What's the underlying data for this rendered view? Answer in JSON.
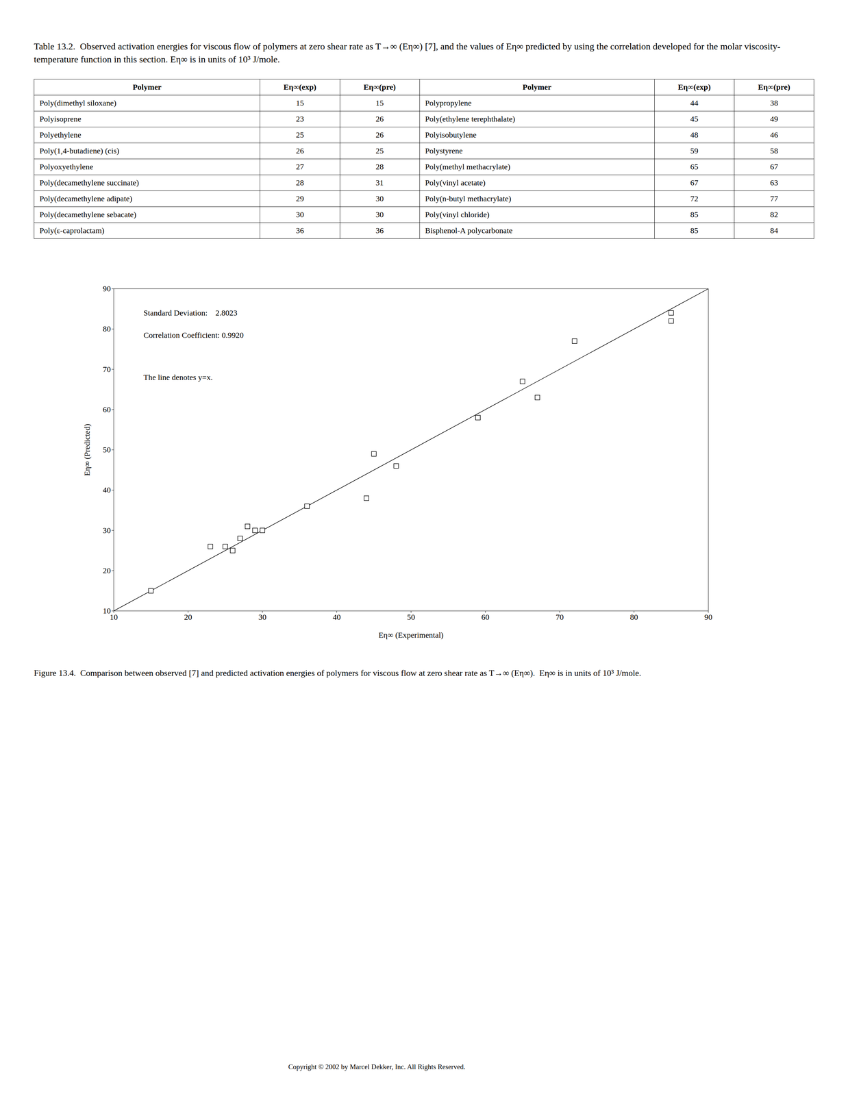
{
  "chart_data": {
    "type": "scatter",
    "title": "Table 13.2.  Observed activation energies for viscous flow of polymers at zero shear rate as T→∞ (Eη∞) [7], and the values of Eη∞ predicted by using the correlation developed for the molar viscosity-temperature function in this section. Eη∞ is in units of 10³ J/mole.",
    "table": {
      "columns": [
        "Polymer",
        "Eη∞(exp)",
        "Eη∞(pre)",
        "Polymer",
        "Eη∞(exp)",
        "Eη∞(pre)"
      ],
      "rows": [
        [
          "Poly(dimethyl siloxane)",
          "15",
          "15",
          "Polypropylene",
          "44",
          "38"
        ],
        [
          "Polyisoprene",
          "23",
          "26",
          "Poly(ethylene terephthalate)",
          "45",
          "49"
        ],
        [
          "Polyethylene",
          "25",
          "26",
          "Polyisobutylene",
          "48",
          "46"
        ],
        [
          "Poly(1,4-butadiene) (cis)",
          "26",
          "25",
          "Polystyrene",
          "59",
          "58"
        ],
        [
          "Polyoxyethylene",
          "27",
          "28",
          "Poly(methyl methacrylate)",
          "65",
          "67"
        ],
        [
          "Poly(decamethylene succinate)",
          "28",
          "31",
          "Poly(vinyl acetate)",
          "67",
          "63"
        ],
        [
          "Poly(decamethylene adipate)",
          "29",
          "30",
          "Poly(n-butyl methacrylate)",
          "72",
          "77"
        ],
        [
          "Poly(decamethylene sebacate)",
          "30",
          "30",
          "Poly(vinyl chloride)",
          "85",
          "82"
        ],
        [
          "Poly(ε-caprolactam)",
          "36",
          "36",
          "Bisphenol-A polycarbonate",
          "85",
          "84"
        ]
      ]
    },
    "x": [
      15,
      23,
      25,
      26,
      27,
      28,
      29,
      30,
      36,
      44,
      45,
      48,
      59,
      65,
      67,
      72,
      85,
      85
    ],
    "values": [
      15,
      26,
      26,
      25,
      28,
      31,
      30,
      30,
      36,
      38,
      49,
      46,
      58,
      67,
      63,
      77,
      82,
      84
    ],
    "color": "#000000",
    "marker": "square",
    "xlabel": "Eη∞ (Experimental)",
    "ylabel": "Eη∞ (Predicted)",
    "xlim": [
      10,
      90
    ],
    "ylim": [
      10,
      90
    ],
    "xticks": [
      10,
      20,
      30,
      40,
      50,
      60,
      70,
      80,
      90
    ],
    "yticks": [
      10,
      20,
      30,
      40,
      50,
      60,
      70,
      80,
      90
    ],
    "annotations": [
      "Standard Deviation:    2.8023",
      "Correlation Coefficient: 0.9920",
      "The line denotes y=x."
    ],
    "caption": "Figure 13.4.  Comparison between observed [7] and predicted activation energies of polymers for viscous flow at zero shear rate as T→∞ (Eη∞).  Eη∞ is in units of 10³ J/mole.",
    "copyright": "Copyright © 2002 by Marcel Dekker, Inc. All Rights Reserved."
  }
}
